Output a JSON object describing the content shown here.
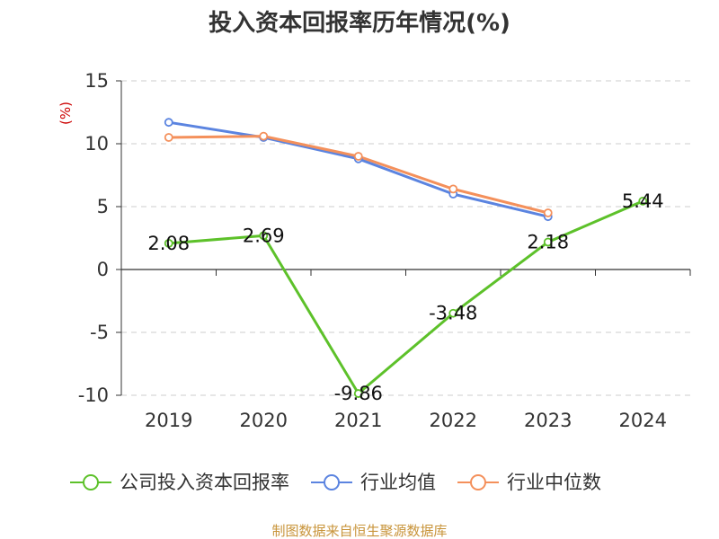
{
  "chart_data": {
    "type": "line",
    "title": "投入资本回报率历年情况(%)",
    "ylabel": "(%)",
    "categories": [
      "2019",
      "2020",
      "2021",
      "2022",
      "2023",
      "2024"
    ],
    "ylim": [
      -10,
      15
    ],
    "yticks": [
      "15",
      "10",
      "5",
      "0",
      "-5",
      "-10"
    ],
    "ytick_values": [
      15,
      10,
      5,
      0,
      -5,
      -10
    ],
    "grid": true,
    "legend_position": "bottom",
    "series": [
      {
        "name": "公司投入资本回报率",
        "color": "#5dc12a",
        "values": [
          2.08,
          2.69,
          -9.86,
          -3.48,
          2.18,
          5.44
        ],
        "labels": [
          "2.08",
          "2.69",
          "-9.86",
          "-3.48",
          "2.18",
          "5.44"
        ]
      },
      {
        "name": "行业均值",
        "color": "#5b84e0",
        "values": [
          11.7,
          10.5,
          8.8,
          6.0,
          4.2,
          null
        ]
      },
      {
        "name": "行业中位数",
        "color": "#f4905b",
        "values": [
          10.5,
          10.6,
          9.0,
          6.4,
          4.5,
          null
        ]
      }
    ],
    "source": "制图数据来自恒生聚源数据库"
  }
}
